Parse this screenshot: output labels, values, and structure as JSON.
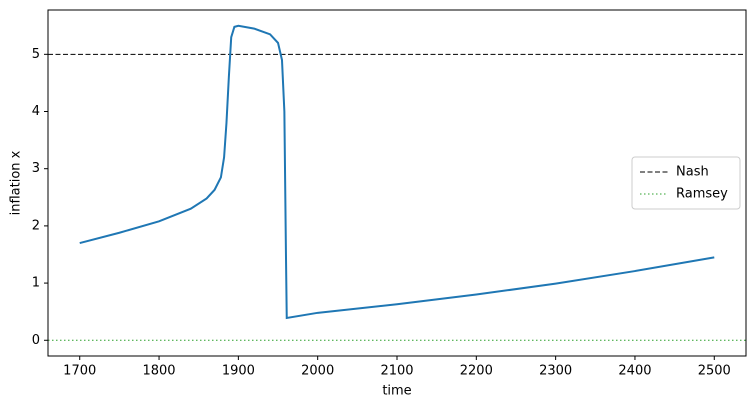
{
  "chart_data": {
    "type": "line",
    "x": [
      1700,
      1750,
      1800,
      1840,
      1860,
      1870,
      1878,
      1882,
      1885,
      1888,
      1891,
      1895,
      1900,
      1920,
      1940,
      1950,
      1955,
      1958,
      1960,
      1961,
      2000,
      2100,
      2200,
      2300,
      2400,
      2500
    ],
    "values": [
      1.7,
      1.88,
      2.08,
      2.3,
      2.48,
      2.63,
      2.85,
      3.2,
      3.8,
      4.6,
      5.3,
      5.48,
      5.5,
      5.45,
      5.35,
      5.2,
      4.9,
      4.0,
      1.5,
      0.39,
      0.48,
      0.63,
      0.8,
      0.99,
      1.21,
      1.45
    ],
    "color": "#1f77b4",
    "reference_lines": [
      {
        "name": "Nash",
        "value": 5,
        "color": "#000000",
        "style": "dashed"
      },
      {
        "name": "Ramsey",
        "value": 0,
        "color": "#2ca02c",
        "style": "dotted"
      }
    ],
    "xlabel": "time",
    "ylabel": "inflation x",
    "xlim": [
      1660,
      2540
    ],
    "ylim": [
      -0.275,
      5.775
    ],
    "xticks": [
      1700,
      1800,
      1900,
      2000,
      2100,
      2200,
      2300,
      2400,
      2500
    ],
    "yticks": [
      0,
      1,
      2,
      3,
      4,
      5
    ],
    "legend": "center right"
  }
}
